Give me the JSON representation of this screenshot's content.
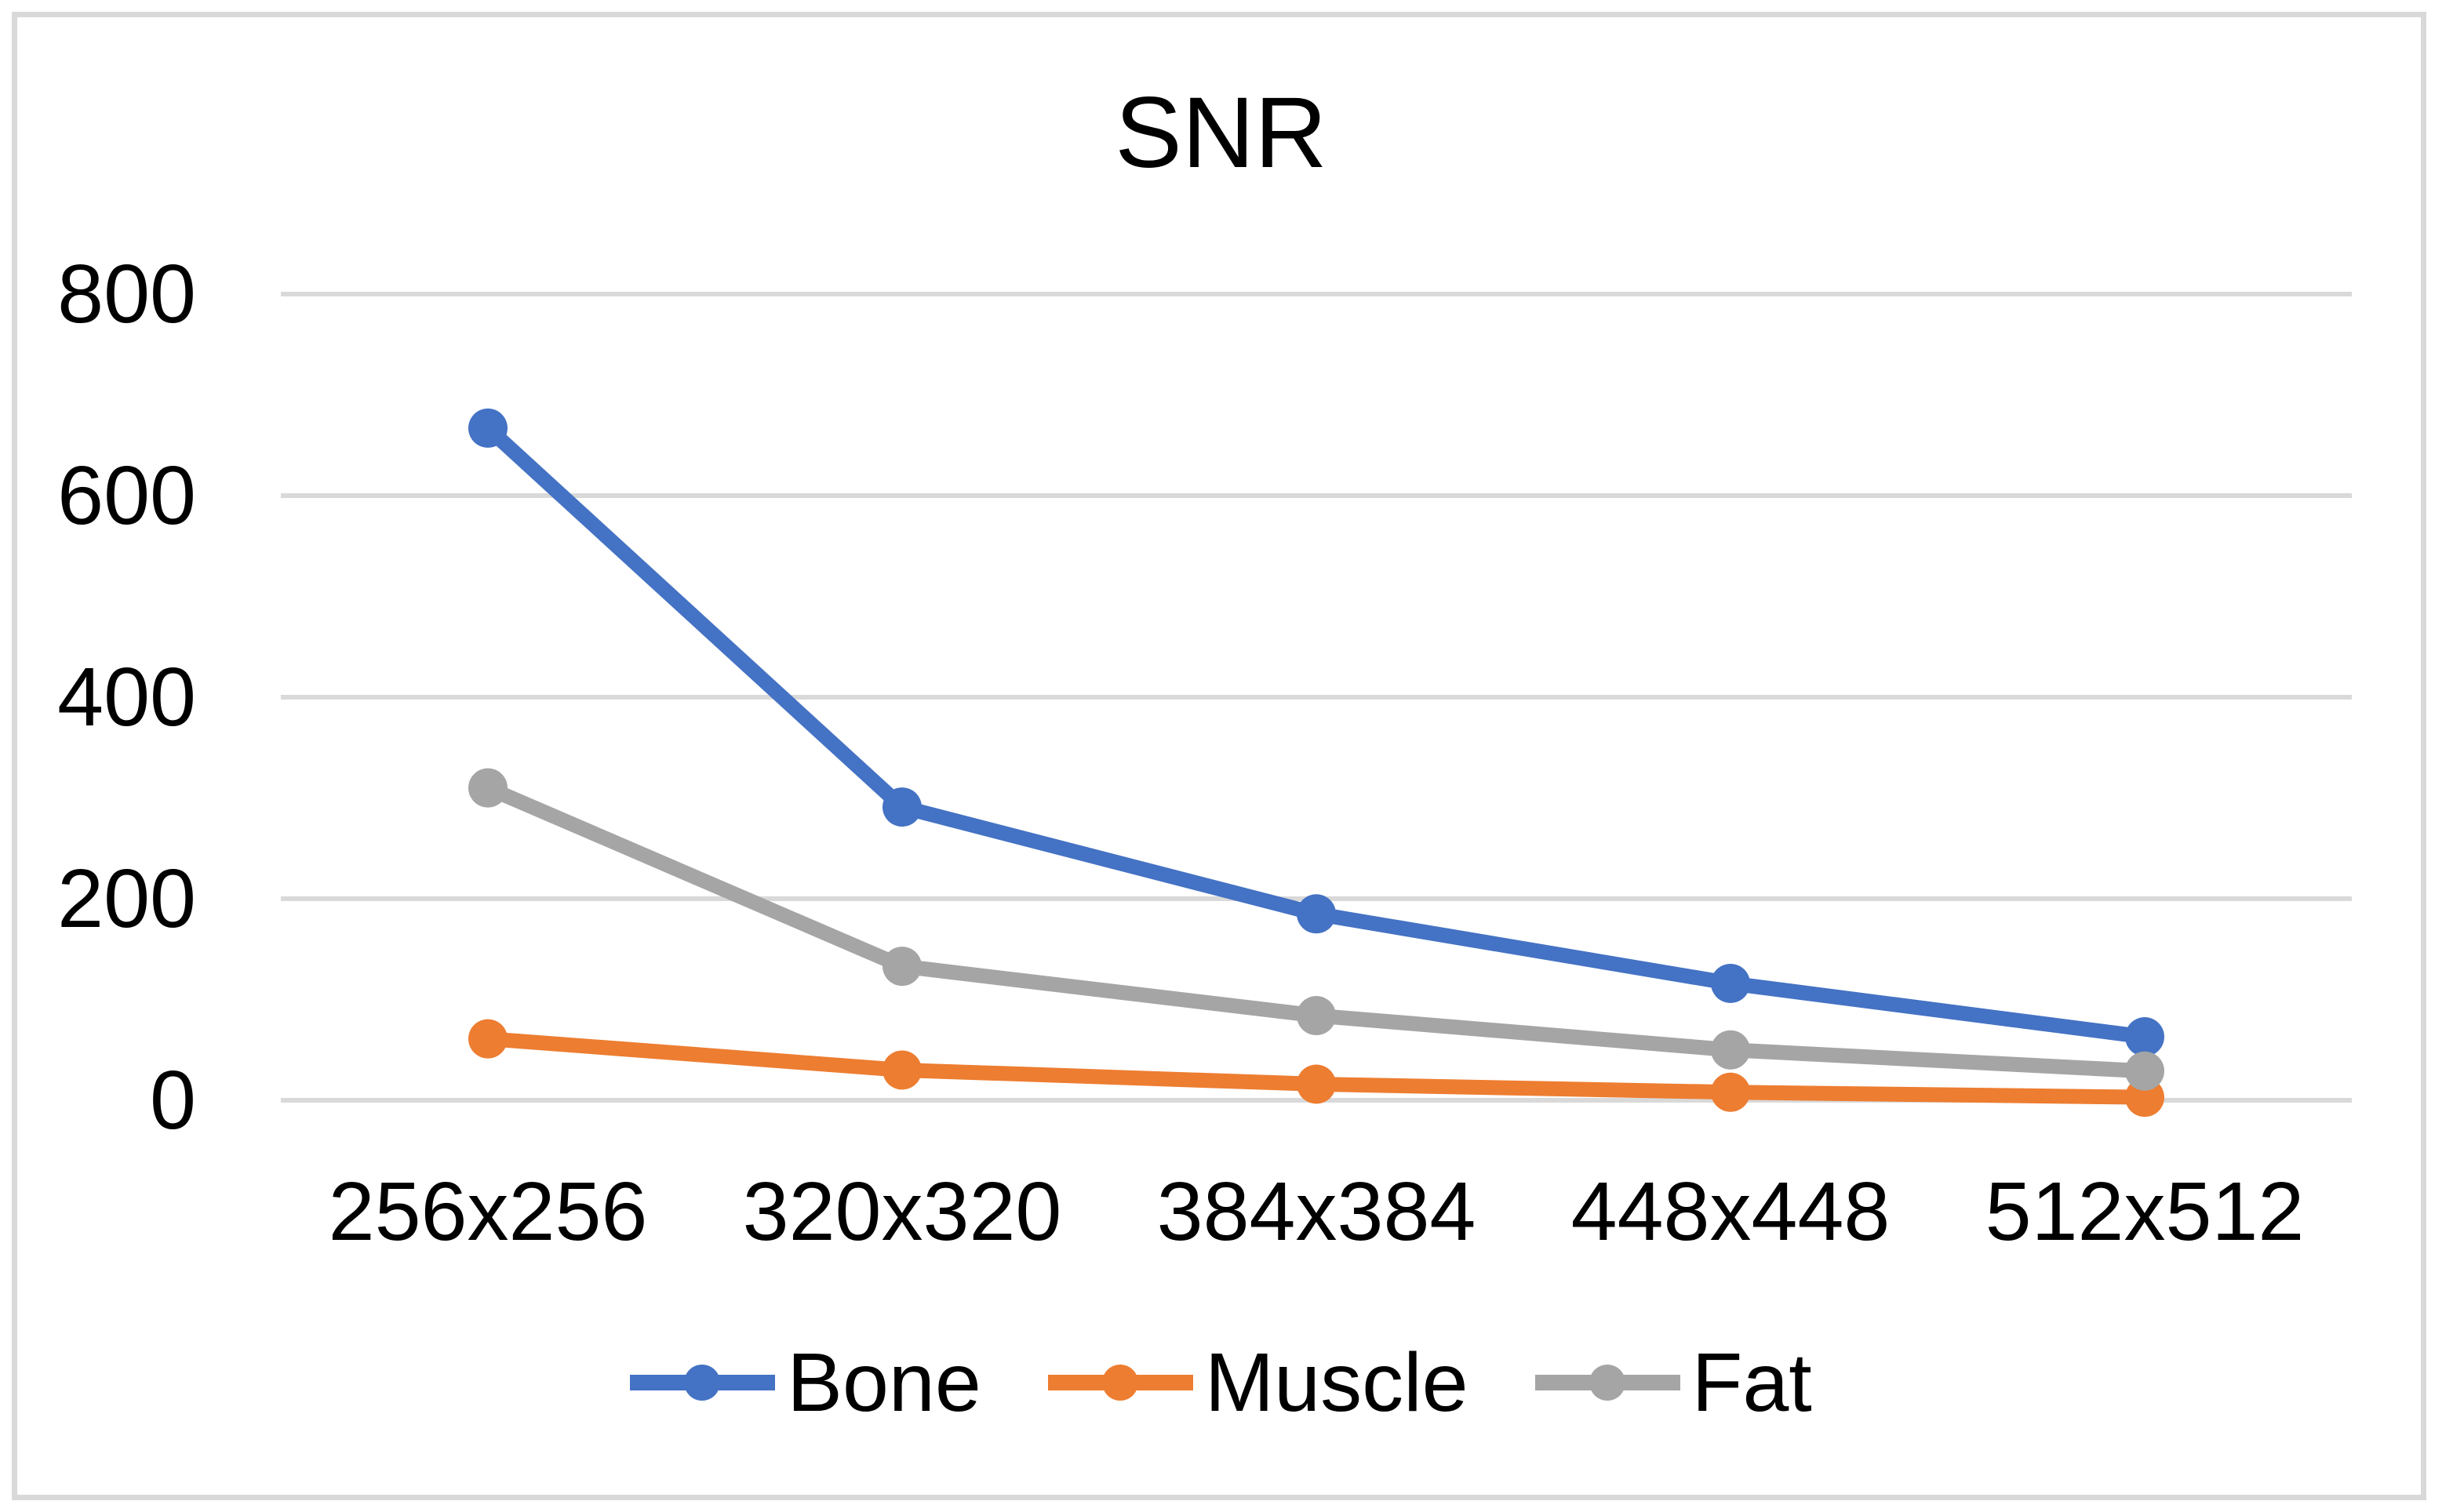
{
  "chart_data": {
    "type": "line",
    "title": "SNR",
    "categories": [
      "256x256",
      "320x320",
      "384x384",
      "448x448",
      "512x512"
    ],
    "series": [
      {
        "name": "Bone",
        "color": "#4472C4",
        "values": [
          667,
          291,
          185,
          116,
          63
        ]
      },
      {
        "name": "Muscle",
        "color": "#ED7D31",
        "values": [
          61,
          30,
          16,
          8,
          3
        ]
      },
      {
        "name": "Fat",
        "color": "#A5A5A5",
        "values": [
          310,
          133,
          84,
          50,
          29
        ]
      }
    ],
    "legend": [
      "Bone",
      "Muscle",
      "Fat"
    ],
    "y_axis": {
      "min": 0,
      "max": 800,
      "tick_step": 200,
      "ticks": [
        0,
        200,
        400,
        600,
        800
      ]
    },
    "x_axis": {
      "label": ""
    },
    "grid": "horizontal",
    "legend_position": "bottom",
    "colors": {
      "gridline": "#D9D9D9",
      "frame_border": "#D9D9D9",
      "text": "#000000",
      "background": "#FFFFFF"
    }
  }
}
